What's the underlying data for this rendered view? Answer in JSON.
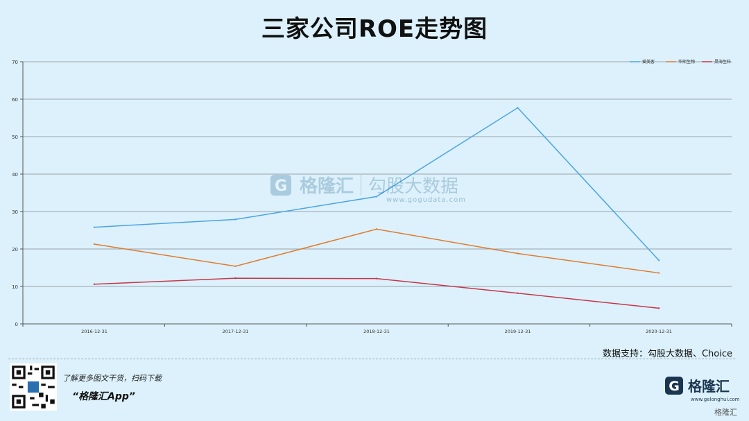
{
  "title": "三家公司ROE走势图",
  "source": "数据支持：勾股大数据、Choice",
  "promo": {
    "line1": "了解更多图文干货，扫码下载",
    "line2": "“格隆汇App”"
  },
  "brand": {
    "name": "格隆汇",
    "url": "www.gelonghui.com",
    "watermark_name": "格隆汇"
  },
  "watermark": {
    "brand": "格隆汇",
    "product": "勾股大数据",
    "url": "www.gogudata.com"
  },
  "colors": {
    "background": "#dcf1fb",
    "series1": "#4aa3e6",
    "series2": "#e07b2e",
    "series3": "#c8354a"
  },
  "chart_data": {
    "type": "line",
    "title": "三家公司ROE走势图",
    "x": [
      "2016-12-31",
      "2017-12-31",
      "2018-12-31",
      "2019-12-31",
      "2020-12-31"
    ],
    "series": [
      {
        "name": "爱美客",
        "values": [
          25.8,
          27.9,
          34.0,
          57.7,
          17.0
        ]
      },
      {
        "name": "华熙生物",
        "values": [
          21.3,
          15.4,
          25.3,
          18.8,
          13.6
        ]
      },
      {
        "name": "昊海生科",
        "values": [
          10.6,
          12.2,
          12.1,
          8.2,
          4.2
        ]
      }
    ],
    "ylim": [
      0,
      70
    ],
    "yticks": [
      0,
      10,
      20,
      30,
      40,
      50,
      60,
      70
    ],
    "grid": true,
    "legend": "top-right"
  }
}
